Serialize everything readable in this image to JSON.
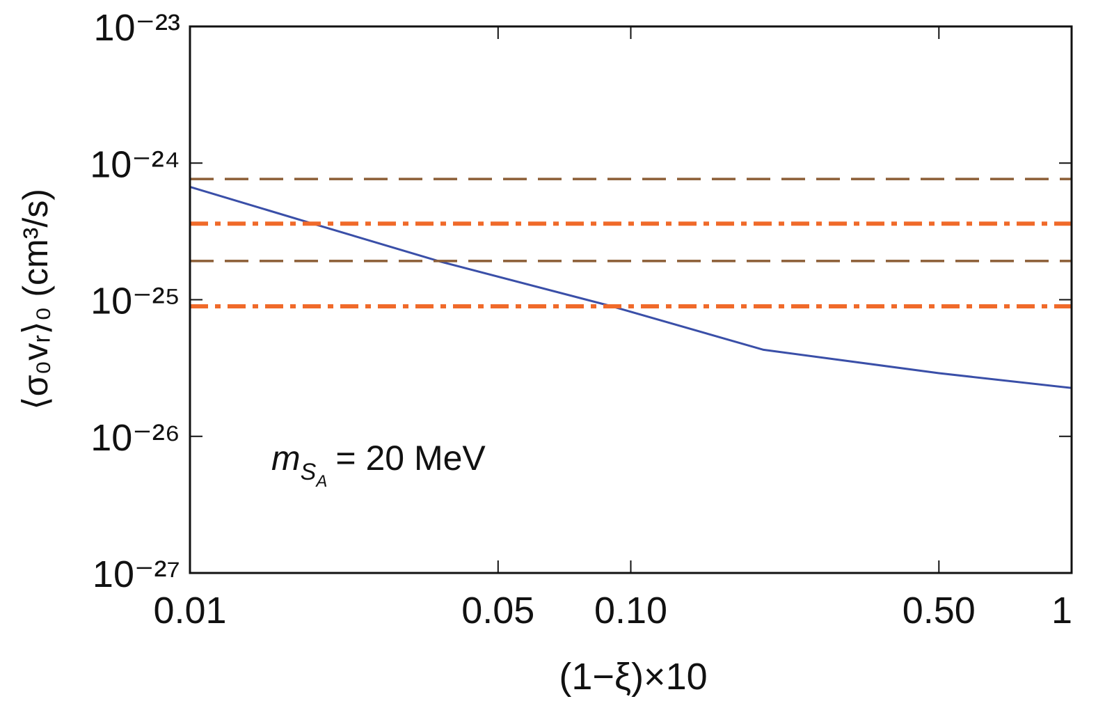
{
  "chart_data": {
    "type": "line",
    "xlabel": "(1−ξ)×10",
    "ylabel": "⟨σ₀vᵣ⟩₀  (cm³/s)",
    "annotation": {
      "symbol": "m",
      "sub": "S",
      "subsub": "A",
      "text": "= 20 MeV"
    },
    "xlog": true,
    "ylog": true,
    "xlim": [
      0.01,
      1
    ],
    "ylim": [
      1e-27,
      1e-23
    ],
    "xticks": [
      0.01,
      0.05,
      {
        "value": 0.1,
        "label": "0.10"
      },
      {
        "value": 0.5,
        "label": "0.50"
      },
      1
    ],
    "yticks": [
      {
        "value": 1e-27,
        "label": "10⁻²⁷"
      },
      {
        "value": 1e-26,
        "label": "10⁻²⁶"
      },
      {
        "value": 1e-25,
        "label": "10⁻²⁵"
      },
      {
        "value": 1e-24,
        "label": "10⁻²⁴"
      },
      {
        "value": 1e-23,
        "label": "10⁻²³"
      }
    ],
    "series": [
      {
        "color": "#3a4fa8",
        "style": "solid",
        "x": [
          0.01,
          0.019,
          0.037,
          0.09,
          0.2,
          0.5,
          1
        ],
        "values": [
          6.7e-25,
          3.6e-25,
          1.9e-25,
          9e-26,
          4.3e-26,
          2.9e-26,
          2.26e-26
        ]
      },
      {
        "color": "#8c5e36",
        "style": "dashed",
        "x": [
          0.01,
          1
        ],
        "values": [
          7.65e-25,
          7.65e-25
        ]
      },
      {
        "color": "#f06a2a",
        "style": "dashdot",
        "x": [
          0.01,
          1
        ],
        "values": [
          3.6e-25,
          3.6e-25
        ]
      },
      {
        "color": "#8c5e36",
        "style": "dashed",
        "x": [
          0.01,
          1
        ],
        "values": [
          1.92e-25,
          1.92e-25
        ]
      },
      {
        "color": "#f06a2a",
        "style": "dashdot",
        "x": [
          0.01,
          1
        ],
        "values": [
          8.95e-26,
          8.95e-26
        ]
      }
    ]
  }
}
